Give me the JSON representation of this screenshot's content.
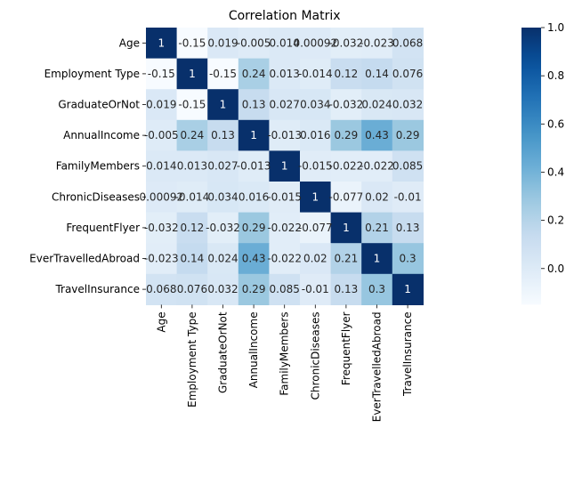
{
  "chart_data": {
    "type": "heatmap",
    "title": "Correlation Matrix",
    "xlabel": "",
    "ylabel": "",
    "row_labels": [
      "Age",
      "Employment Type",
      "GraduateOrNot",
      "AnnualIncome",
      "FamilyMembers",
      "ChronicDiseases",
      "FrequentFlyer",
      "EverTravelledAbroad",
      "TravelInsurance"
    ],
    "col_labels": [
      "Age",
      "Employment Type",
      "GraduateOrNot",
      "AnnualIncome",
      "FamilyMembers",
      "ChronicDiseases",
      "FrequentFlyer",
      "EverTravelledAbroad",
      "TravelInsurance"
    ],
    "values": [
      [
        1,
        -0.15,
        0.019,
        -0.005,
        0.014,
        0.00092,
        -0.032,
        -0.023,
        0.068
      ],
      [
        -0.15,
        1,
        -0.15,
        0.24,
        0.013,
        -0.014,
        0.12,
        0.14,
        0.076
      ],
      [
        0.019,
        -0.15,
        1,
        0.13,
        0.027,
        0.034,
        -0.032,
        0.024,
        0.032
      ],
      [
        -0.005,
        0.24,
        0.13,
        1,
        -0.013,
        0.016,
        0.29,
        0.43,
        0.29
      ],
      [
        0.014,
        0.013,
        0.027,
        -0.013,
        1,
        -0.015,
        -0.022,
        -0.022,
        0.085
      ],
      [
        0.00092,
        -0.014,
        0.034,
        0.016,
        -0.015,
        1,
        -0.077,
        0.02,
        -0.01
      ],
      [
        -0.032,
        0.12,
        -0.032,
        0.29,
        -0.022,
        -0.077,
        1,
        0.21,
        0.13
      ],
      [
        -0.023,
        0.14,
        0.024,
        0.43,
        -0.022,
        0.02,
        0.21,
        1,
        0.3
      ],
      [
        0.068,
        0.076,
        0.032,
        0.29,
        0.085,
        -0.01,
        0.13,
        0.3,
        1
      ]
    ],
    "cell_labels": [
      [
        "1",
        "-0.15",
        "0.019",
        "-0.005",
        "0.014",
        "0.00092",
        "-0.032",
        "-0.023",
        "0.068"
      ],
      [
        "-0.15",
        "1",
        "-0.15",
        "0.24",
        "0.013",
        "-0.014",
        "0.12",
        "0.14",
        "0.076"
      ],
      [
        "0.019",
        "-0.15",
        "1",
        "0.13",
        "0.027",
        "0.034",
        "-0.032",
        "0.024",
        "0.032"
      ],
      [
        "-0.005",
        "0.24",
        "0.13",
        "1",
        "-0.013",
        "0.016",
        "0.29",
        "0.43",
        "0.29"
      ],
      [
        "0.014",
        "0.013",
        "0.027",
        "-0.013",
        "1",
        "-0.015",
        "-0.022",
        "-0.022",
        "0.085"
      ],
      [
        "0.00092",
        "-0.014",
        "0.034",
        "0.016",
        "-0.015",
        "1",
        "-0.077",
        "0.02",
        "-0.01"
      ],
      [
        "-0.032",
        "0.12",
        "-0.032",
        "0.29",
        "-0.022",
        "-0.077",
        "1",
        "0.21",
        "0.13"
      ],
      [
        "-0.023",
        "0.14",
        "0.024",
        "0.43",
        "-0.022",
        "0.02",
        "0.21",
        "1",
        "0.3"
      ],
      [
        "0.068",
        "0.076",
        "0.032",
        "0.29",
        "0.085",
        "-0.01",
        "0.13",
        "0.3",
        "1"
      ]
    ],
    "colormap": "Blues",
    "vmin": -0.15,
    "vmax": 1.0,
    "colorbar_ticks": [
      "0.0",
      "0.2",
      "0.4",
      "0.6",
      "0.8",
      "1.0"
    ],
    "colorbar_tick_values": [
      0.0,
      0.2,
      0.4,
      0.6,
      0.8,
      1.0
    ],
    "grid": false
  }
}
